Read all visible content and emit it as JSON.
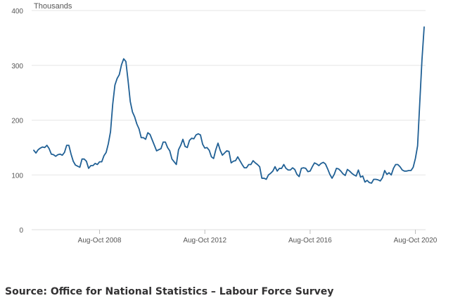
{
  "chart_data": {
    "type": "line",
    "y_unit_label": "Thousands",
    "ylim": [
      0,
      400
    ],
    "y_ticks": [
      0,
      100,
      200,
      300,
      400
    ],
    "x_tick_labels": [
      {
        "label": "Aug-Oct 2008",
        "index": 30
      },
      {
        "label": "Aug-Oct 2012",
        "index": 78
      },
      {
        "label": "Aug-Oct 2016",
        "index": 126
      },
      {
        "label": "Aug-Oct 2020",
        "index": 174
      }
    ],
    "gridlines": "horizontal",
    "legend": "none",
    "series": [
      {
        "color": "#206095",
        "values": [
          145,
          140,
          146,
          149,
          151,
          150,
          154,
          148,
          138,
          137,
          134,
          137,
          138,
          136,
          141,
          154,
          154,
          138,
          125,
          118,
          116,
          114,
          129,
          129,
          125,
          112,
          117,
          117,
          121,
          119,
          124,
          124,
          135,
          141,
          157,
          179,
          229,
          264,
          276,
          283,
          301,
          312,
          307,
          272,
          234,
          215,
          206,
          193,
          184,
          168,
          168,
          165,
          177,
          174,
          164,
          154,
          144,
          146,
          148,
          160,
          160,
          150,
          144,
          129,
          124,
          119,
          146,
          154,
          165,
          152,
          150,
          163,
          167,
          166,
          173,
          175,
          173,
          156,
          149,
          150,
          145,
          133,
          130,
          146,
          158,
          145,
          136,
          140,
          144,
          143,
          122,
          125,
          126,
          133,
          126,
          119,
          113,
          113,
          119,
          119,
          126,
          122,
          119,
          115,
          94,
          94,
          92,
          100,
          103,
          107,
          115,
          107,
          112,
          112,
          119,
          112,
          109,
          109,
          113,
          110,
          101,
          97,
          112,
          113,
          112,
          106,
          107,
          115,
          122,
          120,
          117,
          121,
          123,
          120,
          111,
          101,
          94,
          101,
          112,
          111,
          107,
          102,
          99,
          110,
          107,
          103,
          100,
          98,
          109,
          96,
          98,
          87,
          90,
          86,
          85,
          92,
          92,
          91,
          89,
          95,
          108,
          101,
          104,
          100,
          112,
          119,
          119,
          115,
          109,
          107,
          107,
          108,
          108,
          114,
          130,
          153,
          232,
          310,
          370
        ]
      }
    ]
  },
  "footer": {
    "source_text": "Source: Office for National Statistics – Labour Force Survey"
  }
}
